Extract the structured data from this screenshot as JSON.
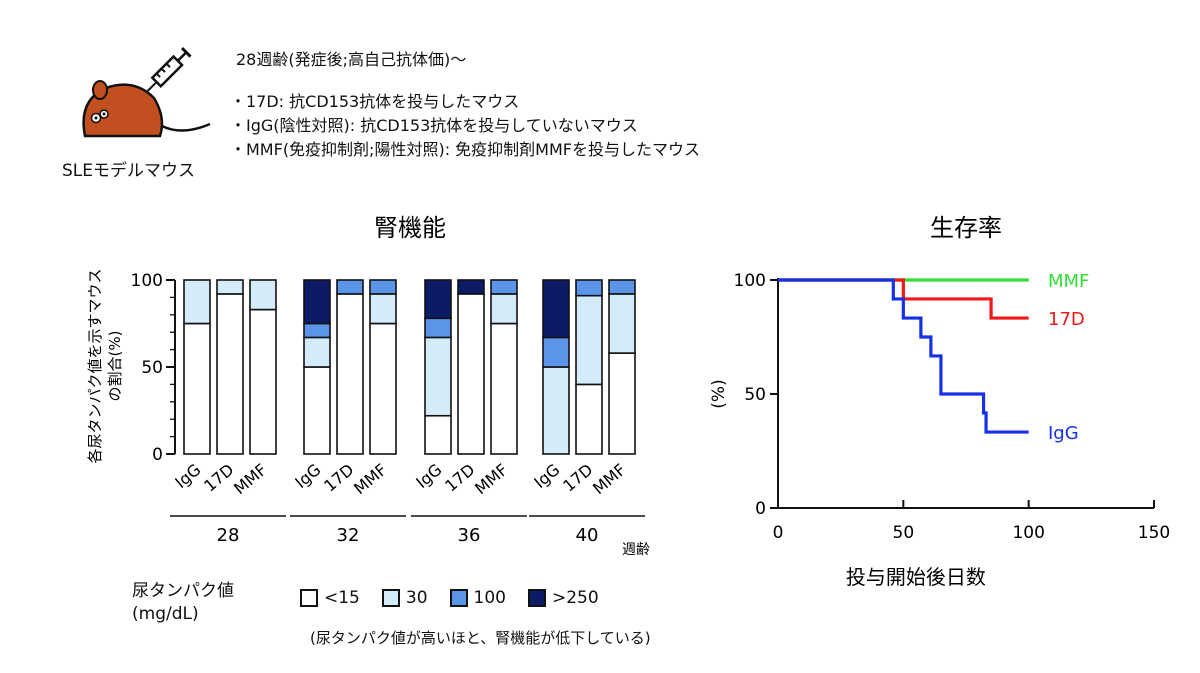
{
  "intro": {
    "mouse_label": "SLEモデルマウス",
    "header": "28週齢(発症後;高自己抗体価)～",
    "groups": [
      "・17D:  抗CD153抗体を投与したマウス",
      "・IgG(陰性対照):  抗CD153抗体を投与していないマウス",
      "・MMF(免疫抑制剤;陽性対照):  免疫抑制剤MMFを投与したマウス"
    ]
  },
  "legend": {
    "title_line1": "尿タンパク値",
    "title_line2": "(mg/dL)",
    "items": [
      "<15",
      "30",
      "100",
      ">250"
    ],
    "note": "(尿タンパク値が高いほと、腎機能が低下している)"
  },
  "colors": {
    "lt15": "#ffffff",
    "c30": "#d4ecfa",
    "c100": "#5b95ea",
    "gt250": "#0d1a66",
    "mmf": "#33dd33",
    "d17": "#f01818",
    "igg": "#1530e8"
  },
  "chart_data": [
    {
      "type": "bar",
      "stacked": true,
      "title": "腎機能",
      "ylabel_line1": "各尿タンパク値を示すマウス",
      "ylabel_line2": "の割合(%)",
      "xlabel": "週齢",
      "ylim": [
        0,
        100
      ],
      "yticks": [
        0,
        50,
        100
      ],
      "weeks": [
        "28",
        "32",
        "36",
        "40"
      ],
      "groups": [
        "IgG",
        "17D",
        "MMF"
      ],
      "series_names": [
        "<15",
        "30",
        "100",
        ">250"
      ],
      "bars": [
        {
          "week": "28",
          "group": "IgG",
          "values": [
            75,
            25,
            0,
            0
          ]
        },
        {
          "week": "28",
          "group": "17D",
          "values": [
            92,
            8,
            0,
            0
          ]
        },
        {
          "week": "28",
          "group": "MMF",
          "values": [
            83,
            17,
            0,
            0
          ]
        },
        {
          "week": "32",
          "group": "IgG",
          "values": [
            50,
            17,
            8,
            25
          ]
        },
        {
          "week": "32",
          "group": "17D",
          "values": [
            92,
            0,
            8,
            0
          ]
        },
        {
          "week": "32",
          "group": "MMF",
          "values": [
            75,
            17,
            8,
            0
          ]
        },
        {
          "week": "36",
          "group": "IgG",
          "values": [
            22,
            45,
            11,
            22
          ]
        },
        {
          "week": "36",
          "group": "17D",
          "values": [
            92,
            0,
            0,
            8
          ]
        },
        {
          "week": "36",
          "group": "MMF",
          "values": [
            75,
            17,
            8,
            0
          ]
        },
        {
          "week": "40",
          "group": "IgG",
          "values": [
            0,
            50,
            17,
            33
          ]
        },
        {
          "week": "40",
          "group": "17D",
          "values": [
            40,
            51,
            9,
            0
          ]
        },
        {
          "week": "40",
          "group": "MMF",
          "values": [
            58,
            34,
            8,
            0
          ]
        }
      ]
    },
    {
      "type": "line",
      "step": true,
      "title": "生存率",
      "xlabel": "投与開始後日数",
      "ylabel": "(%)",
      "xlim": [
        0,
        150
      ],
      "ylim": [
        0,
        100
      ],
      "xticks": [
        0,
        50,
        100,
        150
      ],
      "yticks": [
        0,
        50,
        100
      ],
      "series": [
        {
          "name": "MMF",
          "color_key": "mmf",
          "x": [
            0,
            100
          ],
          "y": [
            100,
            100
          ]
        },
        {
          "name": "17D",
          "color_key": "d17",
          "x": [
            0,
            50,
            85,
            100
          ],
          "y": [
            100,
            91.7,
            83.3,
            83.3
          ]
        },
        {
          "name": "IgG",
          "color_key": "igg",
          "x": [
            0,
            46,
            50,
            57,
            61,
            65,
            82,
            83,
            100
          ],
          "y": [
            100,
            91.7,
            83.3,
            75,
            66.7,
            50,
            41.7,
            33.3,
            33.3
          ]
        }
      ]
    }
  ]
}
